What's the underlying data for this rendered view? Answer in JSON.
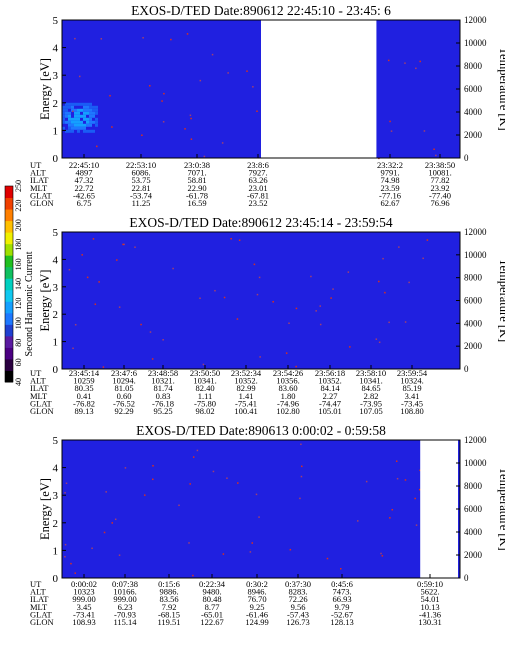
{
  "chart_data": [
    {
      "type": "heatmap",
      "title": "EXOS-D/TED   Date:890612  22:45:10 - 23:45: 6",
      "ylabel": "Energy [eV]",
      "ylabel_right": "Temperature [K]",
      "ylim": [
        0,
        5
      ],
      "ylim_right": [
        0,
        12000
      ],
      "y_ticks": [
        "0",
        "1",
        "2",
        "3",
        "4",
        "5"
      ],
      "y_ticks_right": [
        "0",
        "2000",
        "4000",
        "6000",
        "8000",
        "10000",
        "12000"
      ],
      "background_color": "#2020e0",
      "gap_color": "#ffffff",
      "data_gaps": [
        [
          0.5,
          0.79
        ]
      ],
      "enhancement": {
        "x_range": [
          0.0,
          0.09
        ],
        "energy_range": [
          1.0,
          2.0
        ],
        "color": "#1e78ff"
      },
      "row_labels": [
        "UT",
        "ALT",
        "ILAT",
        "MLT",
        "GLAT",
        "GLON"
      ],
      "columns": [
        {
          "UT": "22:45:10",
          "ALT": "4897",
          "ILAT": "47.32",
          "MLT": "22.72",
          "GLAT": "-42.65",
          "GLON": "6.75"
        },
        {
          "UT": "22:53:10",
          "ALT": "6086.",
          "ILAT": "53.75",
          "MLT": "22.81",
          "GLAT": "-53.74",
          "GLON": "11.25"
        },
        {
          "UT": "23:0:38",
          "ALT": "7071.",
          "ILAT": "58.81",
          "MLT": "22.90",
          "GLAT": "-61.78",
          "GLON": "16.59"
        },
        {
          "UT": "23:8:6",
          "ALT": "7927.",
          "ILAT": "63.26",
          "MLT": "23.01",
          "GLAT": "-67.81",
          "GLON": "23.52"
        },
        {
          "UT": "23:32:2",
          "ALT": "9791.",
          "ILAT": "74.98",
          "MLT": "23.59",
          "GLAT": "-77.16",
          "GLON": "62.67"
        },
        {
          "UT": "23:38:50",
          "ALT": "10081.",
          "ILAT": "77.82",
          "MLT": "23.92",
          "GLAT": "-77.40",
          "GLON": "76.96"
        }
      ]
    },
    {
      "type": "heatmap",
      "title": "EXOS-D/TED   Date:890612  23:45:14 - 23:59:54",
      "ylabel": "Energy [eV]",
      "ylabel_right": "Temperature [K]",
      "ylim": [
        0,
        5
      ],
      "ylim_right": [
        0,
        12000
      ],
      "y_ticks": [
        "0",
        "1",
        "2",
        "3",
        "4",
        "5"
      ],
      "y_ticks_right": [
        "0",
        "2000",
        "4000",
        "6000",
        "8000",
        "10000",
        "12000"
      ],
      "background_color": "#2020e0",
      "data_gaps": [],
      "colorbar": {
        "label": "Second Harmonic Current",
        "ticks": [
          "40",
          "60",
          "80",
          "100",
          "120",
          "140",
          "160",
          "180",
          "200",
          "220",
          "250"
        ]
      },
      "row_labels": [
        "UT",
        "ALT",
        "ILAT",
        "MLT",
        "GLAT",
        "GLON"
      ],
      "columns": [
        {
          "UT": "23:45:14",
          "ALT": "10259",
          "ILAT": "80.35",
          "MLT": "0.41",
          "GLAT": "-76.82",
          "GLON": "89.13"
        },
        {
          "UT": "23:47:6",
          "ALT": "10294.",
          "ILAT": "81.05",
          "MLT": "0.60",
          "GLAT": "-76.52",
          "GLON": "92.29"
        },
        {
          "UT": "23:48:58",
          "ALT": "10321.",
          "ILAT": "81.74",
          "MLT": "0.83",
          "GLAT": "-76.18",
          "GLON": "95.25"
        },
        {
          "UT": "23:50:50",
          "ALT": "10341.",
          "ILAT": "82.40",
          "MLT": "1.11",
          "GLAT": "-75.80",
          "GLON": "98.02"
        },
        {
          "UT": "23:52:34",
          "ALT": "10352.",
          "ILAT": "82.99",
          "MLT": "1.41",
          "GLAT": "-75.41",
          "GLON": "100.41"
        },
        {
          "UT": "23:54:26",
          "ALT": "10356.",
          "ILAT": "83.60",
          "MLT": "1.80",
          "GLAT": "-74.96",
          "GLON": "102.80"
        },
        {
          "UT": "23:56:18",
          "ALT": "10352.",
          "ILAT": "84.14",
          "MLT": "2.27",
          "GLAT": "-74.47",
          "GLON": "105.01"
        },
        {
          "UT": "23:58:10",
          "ALT": "10341.",
          "ILAT": "84.65",
          "MLT": "2.82",
          "GLAT": "-73.95",
          "GLON": "107.05"
        },
        {
          "UT": "23:59:54",
          "ALT": "10324.",
          "ILAT": "85.19",
          "MLT": "3.41",
          "GLAT": "-73.45",
          "GLON": "108.80"
        }
      ]
    },
    {
      "type": "heatmap",
      "title": "EXOS-D/TED   Date:890613  0:00:02 - 0:59:58",
      "ylabel": "Energy [eV]",
      "ylabel_right": "Temperature [K]",
      "ylim": [
        0,
        5
      ],
      "ylim_right": [
        0,
        12000
      ],
      "y_ticks": [
        "0",
        "1",
        "2",
        "3",
        "4",
        "5"
      ],
      "y_ticks_right": [
        "0",
        "2000",
        "4000",
        "6000",
        "8000",
        "10000",
        "12000"
      ],
      "background_color": "#2020e0",
      "gap_color": "#ffffff",
      "data_gaps": [
        [
          0.9,
          0.995
        ]
      ],
      "row_labels": [
        "UT",
        "ALT",
        "ILAT",
        "MLT",
        "GLAT",
        "GLON"
      ],
      "columns": [
        {
          "UT": "0:00:02",
          "ALT": "10323",
          "ILAT": "999.00",
          "MLT": "3.45",
          "GLAT": "-73.41",
          "GLON": "108.93"
        },
        {
          "UT": "0:07:38",
          "ALT": "10166.",
          "ILAT": "999.00",
          "MLT": "6.23",
          "GLAT": "-70.93",
          "GLON": "115.14"
        },
        {
          "UT": "0:15:6",
          "ALT": "9886.",
          "ILAT": "83.56",
          "MLT": "7.92",
          "GLAT": "-68.15",
          "GLON": "119.51"
        },
        {
          "UT": "0:22:34",
          "ALT": "9480.",
          "ILAT": "80.48",
          "MLT": "8.77",
          "GLAT": "-65.01",
          "GLON": "122.67"
        },
        {
          "UT": "0:30:2",
          "ALT": "8946.",
          "ILAT": "76.70",
          "MLT": "9.25",
          "GLAT": "-61.46",
          "GLON": "124.99"
        },
        {
          "UT": "0:37:30",
          "ALT": "8283.",
          "ILAT": "72.26",
          "MLT": "9.56",
          "GLAT": "-57.43",
          "GLON": "126.73"
        },
        {
          "UT": "0:45:6",
          "ALT": "7473.",
          "ILAT": "66.93",
          "MLT": "9.79",
          "GLAT": "-52.67",
          "GLON": "128.13"
        },
        {
          "UT": "0:59:10",
          "ALT": "5622.",
          "ILAT": "54.01",
          "MLT": "10.13",
          "GLAT": "-41.36",
          "GLON": "130.31"
        }
      ]
    }
  ]
}
